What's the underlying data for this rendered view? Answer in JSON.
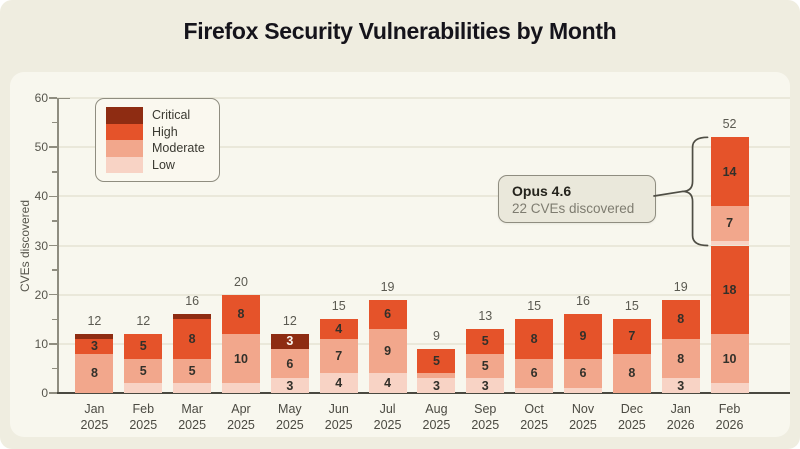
{
  "title": "Firefox Security Vulnerabilities by Month",
  "colors": {
    "page_background": "#EFEDE0",
    "panel_background": "#F8F7EE",
    "gridline": "#EAE8DA",
    "critical": "#8E2C12",
    "high": "#E5532A",
    "moderate": "#F2A78C",
    "low": "#F8D3C5",
    "title_text": "#15141B",
    "axis_text": "#56554C",
    "bracket": "#4F4E45"
  },
  "chart_data": {
    "type": "bar",
    "stacked": true,
    "title": "Firefox Security Vulnerabilities by Month",
    "ylabel": "CVEs discovered",
    "xlabel": "",
    "ylim": [
      0,
      60
    ],
    "yticks": [
      0,
      10,
      20,
      30,
      40,
      50,
      60
    ],
    "minor_tick_step": 5,
    "grid": true,
    "legend_position": "top-left",
    "label_min_value": 3,
    "legend": [
      {
        "label": "Critical",
        "color": "#8E2C12"
      },
      {
        "label": "High",
        "color": "#E5532A"
      },
      {
        "label": "Moderate",
        "color": "#F2A78C"
      },
      {
        "label": "Low",
        "color": "#F8D3C5"
      }
    ],
    "categories": [
      "Jan 2025",
      "Feb 2025",
      "Mar 2025",
      "Apr 2025",
      "May 2025",
      "Jun 2025",
      "Jul 2025",
      "Aug 2025",
      "Sep 2025",
      "Oct 2025",
      "Nov 2025",
      "Dec 2025",
      "Jan 2026",
      "Feb 2026"
    ],
    "months": [
      {
        "label": "Jan 2025",
        "total": 12,
        "segments": [
          {
            "level": "Moderate",
            "value": 8
          },
          {
            "level": "High",
            "value": 3
          },
          {
            "level": "Critical",
            "value": 1
          }
        ]
      },
      {
        "label": "Feb 2025",
        "total": 12,
        "segments": [
          {
            "level": "Low",
            "value": 2
          },
          {
            "level": "Moderate",
            "value": 5
          },
          {
            "level": "High",
            "value": 5
          }
        ]
      },
      {
        "label": "Mar 2025",
        "total": 16,
        "segments": [
          {
            "level": "Low",
            "value": 2
          },
          {
            "level": "Moderate",
            "value": 5
          },
          {
            "level": "High",
            "value": 8
          },
          {
            "level": "Critical",
            "value": 1
          }
        ]
      },
      {
        "label": "Apr 2025",
        "total": 20,
        "segments": [
          {
            "level": "Low",
            "value": 2
          },
          {
            "level": "Moderate",
            "value": 10
          },
          {
            "level": "High",
            "value": 8
          }
        ]
      },
      {
        "label": "May 2025",
        "total": 12,
        "segments": [
          {
            "level": "Low",
            "value": 3
          },
          {
            "level": "Moderate",
            "value": 6
          },
          {
            "level": "Critical",
            "value": 3
          }
        ]
      },
      {
        "label": "Jun 2025",
        "total": 15,
        "segments": [
          {
            "level": "Low",
            "value": 4
          },
          {
            "level": "Moderate",
            "value": 7
          },
          {
            "level": "High",
            "value": 4
          }
        ]
      },
      {
        "label": "Jul 2025",
        "total": 19,
        "segments": [
          {
            "level": "Low",
            "value": 4
          },
          {
            "level": "Moderate",
            "value": 9
          },
          {
            "level": "High",
            "value": 6
          }
        ]
      },
      {
        "label": "Aug 2025",
        "total": 9,
        "segments": [
          {
            "level": "Low",
            "value": 3
          },
          {
            "level": "Moderate",
            "value": 1
          },
          {
            "level": "High",
            "value": 5
          }
        ]
      },
      {
        "label": "Sep 2025",
        "total": 13,
        "segments": [
          {
            "level": "Low",
            "value": 3
          },
          {
            "level": "Moderate",
            "value": 5
          },
          {
            "level": "High",
            "value": 5
          }
        ]
      },
      {
        "label": "Oct 2025",
        "total": 15,
        "segments": [
          {
            "level": "Low",
            "value": 1
          },
          {
            "level": "Moderate",
            "value": 6
          },
          {
            "level": "High",
            "value": 8
          }
        ]
      },
      {
        "label": "Nov 2025",
        "total": 16,
        "segments": [
          {
            "level": "Low",
            "value": 1
          },
          {
            "level": "Moderate",
            "value": 6
          },
          {
            "level": "High",
            "value": 9
          }
        ]
      },
      {
        "label": "Dec 2025",
        "total": 15,
        "segments": [
          {
            "level": "Moderate",
            "value": 8
          },
          {
            "level": "High",
            "value": 7
          }
        ]
      },
      {
        "label": "Jan 2026",
        "total": 19,
        "segments": [
          {
            "level": "Low",
            "value": 3
          },
          {
            "level": "Moderate",
            "value": 8
          },
          {
            "level": "High",
            "value": 8
          }
        ]
      },
      {
        "label": "Feb 2026",
        "total": 52,
        "segments": [
          {
            "level": "Low",
            "value": 2
          },
          {
            "level": "Moderate",
            "value": 10
          },
          {
            "level": "High",
            "value": 18
          },
          {
            "level": "Low",
            "value": 1
          },
          {
            "level": "Moderate",
            "value": 7
          },
          {
            "level": "High",
            "value": 14
          }
        ]
      }
    ],
    "annotation": {
      "title": "Opus 4.6",
      "subtitle": "22 CVEs discovered",
      "target_month": "Feb 2026",
      "bracket_range": [
        30,
        52
      ]
    }
  }
}
